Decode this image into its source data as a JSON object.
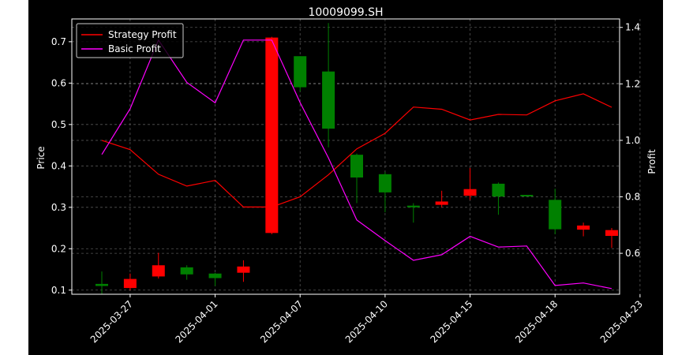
{
  "chart_data": {
    "type": "candlestick",
    "title": "10009099.SH",
    "ylabel": "Price",
    "ylabel_right": "Profit",
    "ylim": [
      0.09,
      0.755
    ],
    "ylim_right": [
      0.455,
      1.43
    ],
    "yticks": [
      "0.1",
      "0.2",
      "0.3",
      "0.4",
      "0.5",
      "0.6",
      "0.7"
    ],
    "yticks_right": [
      "0.6",
      "0.8",
      "1.0",
      "1.2",
      "1.4"
    ],
    "xtick_labels": [
      "2025-03-27",
      "2025-04-01",
      "2025-04-07",
      "2025-04-10",
      "2025-04-15",
      "2025-04-18",
      "2025-04-23"
    ],
    "xtick_positions": [
      1,
      4,
      7,
      10,
      13,
      16,
      19
    ],
    "grid": true,
    "legend_position": "top-left",
    "colors": {
      "up": "#ff0000",
      "down": "#008000",
      "strategy": "#ff0000",
      "basic": "#ff00ff",
      "grid": "#555555"
    },
    "candles": [
      {
        "open": 0.115,
        "close": 0.11,
        "high": 0.145,
        "low": 0.09
      },
      {
        "open": 0.105,
        "close": 0.127,
        "high": 0.14,
        "low": 0.1
      },
      {
        "open": 0.133,
        "close": 0.16,
        "high": 0.19,
        "low": 0.128
      },
      {
        "open": 0.155,
        "close": 0.138,
        "high": 0.16,
        "low": 0.125
      },
      {
        "open": 0.14,
        "close": 0.129,
        "high": 0.142,
        "low": 0.11
      },
      {
        "open": 0.142,
        "close": 0.157,
        "high": 0.172,
        "low": 0.12
      },
      {
        "open": 0.238,
        "close": 0.71,
        "high": 0.712,
        "low": 0.235
      },
      {
        "open": 0.665,
        "close": 0.59,
        "high": 0.665,
        "low": 0.58
      },
      {
        "open": 0.628,
        "close": 0.49,
        "high": 0.745,
        "low": 0.445
      },
      {
        "open": 0.427,
        "close": 0.372,
        "high": 0.43,
        "low": 0.31
      },
      {
        "open": 0.38,
        "close": 0.336,
        "high": 0.385,
        "low": 0.288
      },
      {
        "open": 0.304,
        "close": 0.3,
        "high": 0.31,
        "low": 0.263
      },
      {
        "open": 0.306,
        "close": 0.314,
        "high": 0.34,
        "low": 0.3
      },
      {
        "open": 0.328,
        "close": 0.344,
        "high": 0.395,
        "low": 0.318
      },
      {
        "open": 0.357,
        "close": 0.326,
        "high": 0.36,
        "low": 0.282
      },
      {
        "open": 0.33,
        "close": 0.328,
        "high": 0.33,
        "low": 0.328
      },
      {
        "open": 0.318,
        "close": 0.247,
        "high": 0.345,
        "low": 0.235
      },
      {
        "open": 0.246,
        "close": 0.256,
        "high": 0.263,
        "low": 0.23
      },
      {
        "open": 0.231,
        "close": 0.245,
        "high": 0.25,
        "low": 0.202
      }
    ],
    "series": [
      {
        "name": "Strategy Profit",
        "axis": "right",
        "values": [
          1.0,
          0.967,
          0.88,
          0.838,
          0.858,
          0.764,
          0.764,
          0.8,
          0.878,
          0.97,
          1.025,
          1.118,
          1.11,
          1.072,
          1.092,
          1.09,
          1.14,
          1.165,
          1.117
        ]
      },
      {
        "name": "Basic Profit",
        "axis": "right",
        "values": [
          0.95,
          1.112,
          1.355,
          1.205,
          1.133,
          1.355,
          1.355,
          1.134,
          0.938,
          0.718,
          0.645,
          0.575,
          0.595,
          0.66,
          0.622,
          0.626,
          0.486,
          0.495,
          0.475
        ]
      }
    ]
  }
}
